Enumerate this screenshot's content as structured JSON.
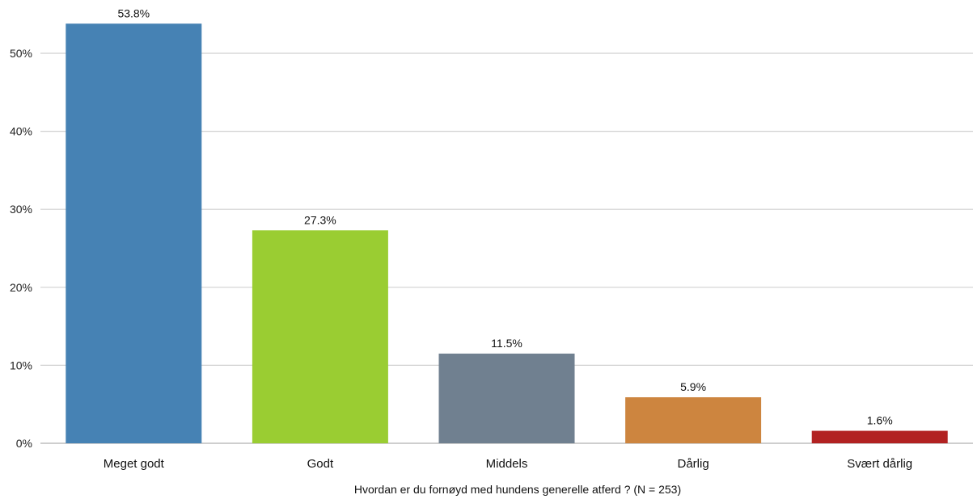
{
  "chart_data": {
    "type": "bar",
    "categories": [
      "Meget godt",
      "Godt",
      "Middels",
      "Dårlig",
      "Svært dårlig"
    ],
    "values": [
      53.8,
      27.3,
      11.5,
      5.9,
      1.6
    ],
    "value_labels": [
      "53.8%",
      "27.3%",
      "11.5%",
      "5.9%",
      "1.6%"
    ],
    "colors": [
      "#4682b4",
      "#9acd32",
      "#708090",
      "#cd853f",
      "#b22222"
    ],
    "xlabel": "Hvordan er du fornøyd med hundens generelle atferd ?  (N = 253)",
    "ylabel": "",
    "ylim": [
      0,
      55
    ],
    "yticks": [
      0,
      10,
      20,
      30,
      40,
      50
    ],
    "ytick_labels": [
      "0%",
      "10%",
      "20%",
      "30%",
      "40%",
      "50%"
    ],
    "grid": true,
    "legend": "none"
  }
}
